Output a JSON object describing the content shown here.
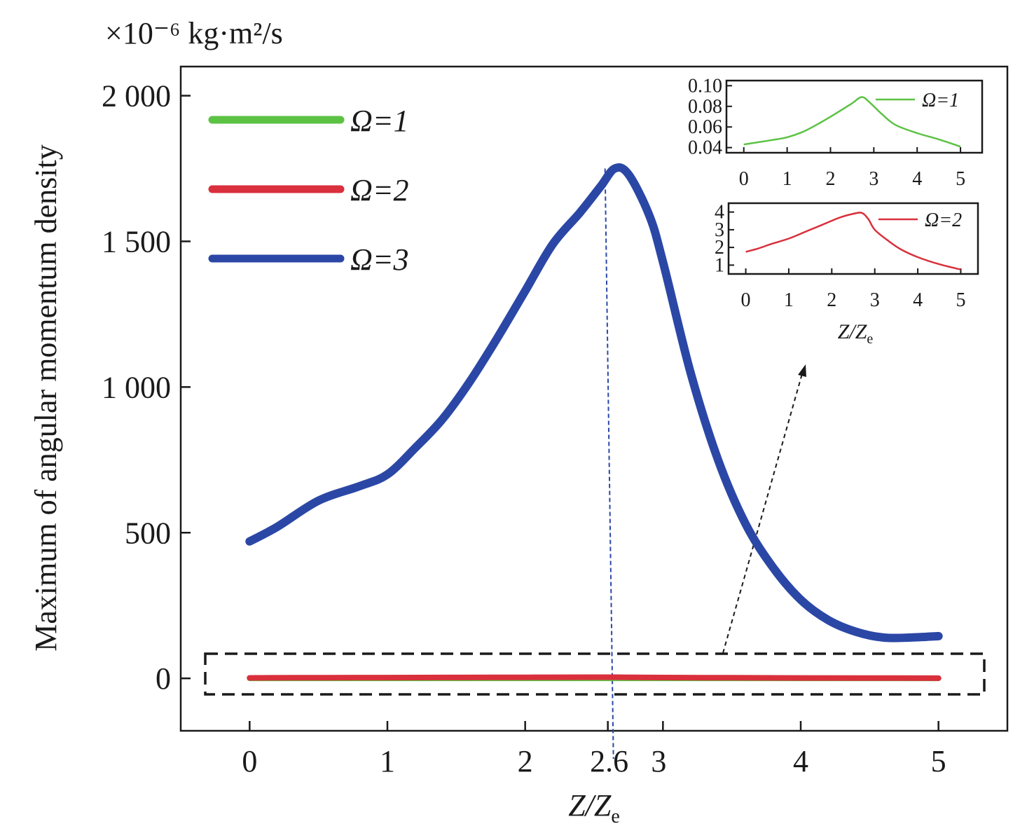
{
  "chart_data": [
    {
      "id": "main",
      "type": "line",
      "ylabel": "Maximum of angular momentum density",
      "yunit": "×10⁻⁶ kg·m²/s",
      "xlabel": "Z/Z",
      "xlabel_sub": "e",
      "xlim": [
        -0.5,
        5.5
      ],
      "ylim": [
        -180,
        2100
      ],
      "xticks": [
        0,
        1,
        2,
        2.6,
        3,
        4,
        5
      ],
      "xtick_labels": [
        "0",
        "1",
        "2",
        "2.6",
        "3",
        "4",
        "5"
      ],
      "yticks": [
        0,
        500,
        1000,
        1500,
        2000
      ],
      "ytick_labels": [
        "0",
        "500",
        "1 000",
        "1 500",
        "2 000"
      ],
      "legend": "top-left",
      "annotation": {
        "peak_x": 2.6,
        "note": "dashed vertical line at peak"
      },
      "series": [
        {
          "name": "Ω=1",
          "color": "#5cc244",
          "x": [
            0,
            0.5,
            1,
            1.5,
            2,
            2.5,
            2.65,
            3,
            3.5,
            4,
            4.5,
            5
          ],
          "y": [
            0.042,
            0.047,
            0.051,
            0.062,
            0.072,
            0.083,
            0.09,
            0.073,
            0.058,
            0.052,
            0.047,
            0.041
          ]
        },
        {
          "name": "Ω=2",
          "color": "#d9303c",
          "x": [
            0,
            0.5,
            1,
            1.5,
            2,
            2.5,
            2.65,
            3,
            3.5,
            4,
            4.5,
            5
          ],
          "y": [
            1.7,
            2.2,
            2.5,
            3.0,
            3.5,
            3.9,
            4.0,
            2.8,
            2.0,
            1.4,
            1.0,
            0.7
          ]
        },
        {
          "name": "Ω=3",
          "color": "#2b47a6",
          "x": [
            0,
            0.2,
            0.5,
            0.8,
            1,
            1.2,
            1.4,
            1.6,
            1.8,
            2,
            2.2,
            2.4,
            2.55,
            2.65,
            2.75,
            2.9,
            3,
            3.2,
            3.4,
            3.6,
            3.8,
            4,
            4.2,
            4.4,
            4.6,
            4.8,
            5
          ],
          "y": [
            470,
            520,
            610,
            660,
            700,
            790,
            890,
            1020,
            1170,
            1330,
            1490,
            1600,
            1690,
            1750,
            1730,
            1590,
            1430,
            1050,
            750,
            530,
            380,
            270,
            200,
            160,
            140,
            140,
            145
          ]
        }
      ]
    },
    {
      "id": "inset-1",
      "type": "line",
      "xlim": [
        -0.4,
        5.5
      ],
      "ylim": [
        0.035,
        0.105
      ],
      "xticks": [
        0,
        1,
        2,
        3,
        4,
        5
      ],
      "xtick_labels": [
        "0",
        "1",
        "2",
        "3",
        "4",
        "5"
      ],
      "yticks": [
        0.04,
        0.06,
        0.08,
        0.1
      ],
      "ytick_labels": [
        "0.04",
        "0.06",
        "0.08",
        "0.10"
      ],
      "legend": "top-right",
      "series": [
        {
          "name": "Ω=1",
          "color": "#5cc244",
          "x": [
            0,
            0.3,
            0.6,
            1,
            1.4,
            1.8,
            2.2,
            2.5,
            2.72,
            2.9,
            3.2,
            3.5,
            4,
            4.5,
            5
          ],
          "y": [
            0.043,
            0.045,
            0.047,
            0.05,
            0.056,
            0.065,
            0.075,
            0.083,
            0.089,
            0.084,
            0.072,
            0.062,
            0.054,
            0.048,
            0.041
          ]
        }
      ]
    },
    {
      "id": "inset-2",
      "type": "line",
      "xlim": [
        -0.4,
        5.4
      ],
      "ylim": [
        0.5,
        4.5
      ],
      "xticks": [
        0,
        1,
        2,
        3,
        4,
        5
      ],
      "xtick_labels": [
        "0",
        "1",
        "2",
        "3",
        "4",
        "5"
      ],
      "yticks": [
        1,
        2,
        3,
        4
      ],
      "ytick_labels": [
        "1",
        "2",
        "3",
        "4"
      ],
      "xlabel": "Z/Z",
      "xlabel_sub": "e",
      "legend": "top-right",
      "series": [
        {
          "name": "Ω=2",
          "color": "#d9303c",
          "x": [
            0,
            0.3,
            0.6,
            1,
            1.4,
            1.8,
            2.2,
            2.5,
            2.7,
            2.85,
            3,
            3.3,
            3.6,
            4,
            4.5,
            5
          ],
          "y": [
            1.75,
            1.95,
            2.2,
            2.5,
            2.9,
            3.3,
            3.7,
            3.9,
            3.95,
            3.6,
            3.0,
            2.4,
            1.9,
            1.45,
            1.05,
            0.75
          ]
        }
      ]
    }
  ]
}
